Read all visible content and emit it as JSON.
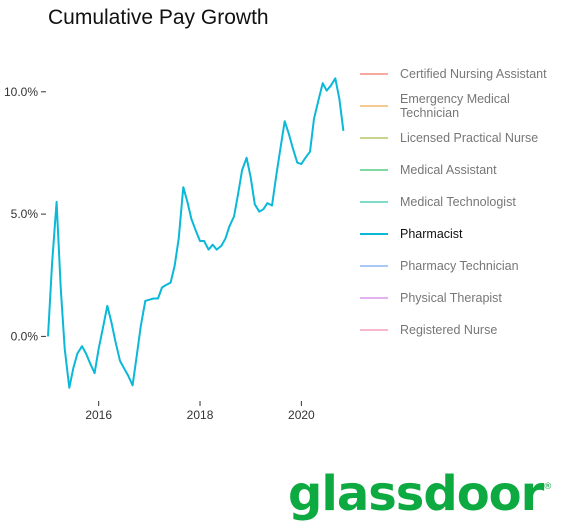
{
  "chart_data": {
    "type": "line",
    "title": "Cumulative Pay Growth",
    "xlabel": "",
    "ylabel": "",
    "xlim": [
      2015.0,
      2020.92
    ],
    "ylim": [
      -2.6,
      11.3
    ],
    "x_ticks": [
      2016,
      2018,
      2020
    ],
    "x_tick_labels": [
      "2016",
      "2018",
      "2020"
    ],
    "y_ticks": [
      0,
      5,
      10
    ],
    "y_tick_labels": [
      "0.0%",
      "5.0%",
      "10.0%"
    ],
    "grid": false,
    "legend_position": "right",
    "active_series": "Pharmacist",
    "series": [
      {
        "name": "Certified Nursing Assistant",
        "color": "#f8a9a0",
        "values": []
      },
      {
        "name": "Emergency Medical Technician",
        "color": "#f5c98f",
        "values": []
      },
      {
        "name": "Licensed Practical Nurse",
        "color": "#c8d58e",
        "values": []
      },
      {
        "name": "Medical Assistant",
        "color": "#7fd9a0",
        "values": []
      },
      {
        "name": "Medical Technologist",
        "color": "#7fdcc8",
        "values": []
      },
      {
        "name": "Pharmacist",
        "color": "#0ab8d8",
        "values": [
          [
            2015.0,
            0.0
          ],
          [
            2015.08,
            3.0
          ],
          [
            2015.17,
            5.5
          ],
          [
            2015.25,
            2.0
          ],
          [
            2015.33,
            -0.5
          ],
          [
            2015.42,
            -2.1
          ],
          [
            2015.5,
            -1.3
          ],
          [
            2015.58,
            -0.7
          ],
          [
            2015.67,
            -0.4
          ],
          [
            2015.75,
            -0.7
          ],
          [
            2015.83,
            -1.1
          ],
          [
            2015.92,
            -1.5
          ],
          [
            2016.0,
            -0.5
          ],
          [
            2016.08,
            0.3
          ],
          [
            2016.17,
            1.25
          ],
          [
            2016.25,
            0.6
          ],
          [
            2016.33,
            -0.2
          ],
          [
            2016.42,
            -1.0
          ],
          [
            2016.5,
            -1.3
          ],
          [
            2016.58,
            -1.6
          ],
          [
            2016.67,
            -2.0
          ],
          [
            2016.75,
            -0.8
          ],
          [
            2016.83,
            0.4
          ],
          [
            2016.92,
            1.45
          ],
          [
            2017.0,
            1.5
          ],
          [
            2017.08,
            1.55
          ],
          [
            2017.17,
            1.55
          ],
          [
            2017.25,
            2.0
          ],
          [
            2017.33,
            2.1
          ],
          [
            2017.42,
            2.2
          ],
          [
            2017.5,
            2.9
          ],
          [
            2017.58,
            4.0
          ],
          [
            2017.67,
            6.1
          ],
          [
            2017.75,
            5.5
          ],
          [
            2017.83,
            4.8
          ],
          [
            2017.92,
            4.3
          ],
          [
            2018.0,
            3.9
          ],
          [
            2018.08,
            3.9
          ],
          [
            2018.17,
            3.55
          ],
          [
            2018.25,
            3.75
          ],
          [
            2018.33,
            3.55
          ],
          [
            2018.42,
            3.7
          ],
          [
            2018.5,
            4.0
          ],
          [
            2018.58,
            4.5
          ],
          [
            2018.67,
            4.9
          ],
          [
            2018.75,
            5.8
          ],
          [
            2018.83,
            6.8
          ],
          [
            2018.92,
            7.3
          ],
          [
            2019.0,
            6.5
          ],
          [
            2019.08,
            5.4
          ],
          [
            2019.17,
            5.1
          ],
          [
            2019.25,
            5.2
          ],
          [
            2019.33,
            5.45
          ],
          [
            2019.42,
            5.35
          ],
          [
            2019.5,
            6.5
          ],
          [
            2019.58,
            7.6
          ],
          [
            2019.67,
            8.8
          ],
          [
            2019.75,
            8.3
          ],
          [
            2019.83,
            7.7
          ],
          [
            2019.92,
            7.1
          ],
          [
            2020.0,
            7.05
          ],
          [
            2020.08,
            7.3
          ],
          [
            2020.17,
            7.55
          ],
          [
            2020.25,
            8.9
          ],
          [
            2020.33,
            9.6
          ],
          [
            2020.42,
            10.35
          ],
          [
            2020.5,
            10.05
          ],
          [
            2020.58,
            10.25
          ],
          [
            2020.67,
            10.55
          ],
          [
            2020.75,
            9.7
          ],
          [
            2020.83,
            8.4
          ]
        ]
      },
      {
        "name": "Pharmacy Technician",
        "color": "#a9c8f5",
        "values": []
      },
      {
        "name": "Physical Therapist",
        "color": "#e3b3f0",
        "values": []
      },
      {
        "name": "Registered Nurse",
        "color": "#f8b8cc",
        "values": []
      }
    ]
  },
  "logo": {
    "text": "glassdoor",
    "mark": "®"
  }
}
